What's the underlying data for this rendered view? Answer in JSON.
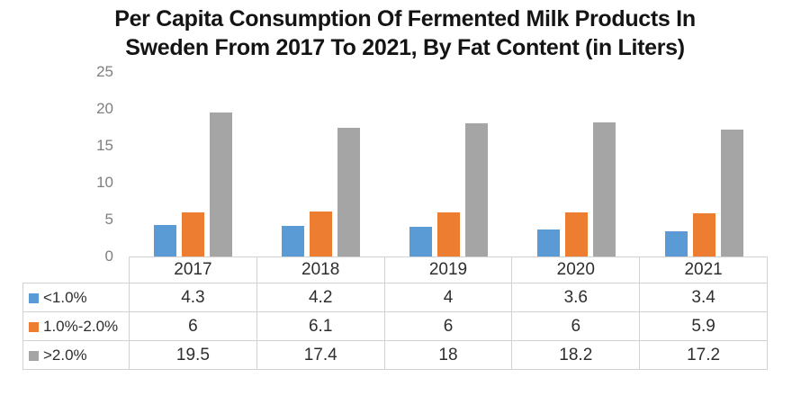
{
  "title": {
    "line1": "Per Capita Consumption Of Fermented Milk Products In",
    "line2": "Sweden From 2017 To 2021, By Fat Content (in Liters)"
  },
  "chart_data": {
    "type": "bar",
    "title": "Per Capita Consumption Of Fermented Milk Products In Sweden From 2017 To 2021, By Fat Content (in Liters)",
    "categories": [
      "2017",
      "2018",
      "2019",
      "2020",
      "2021"
    ],
    "series": [
      {
        "name": "<1.0%",
        "color": "#5B9BD5",
        "values": [
          4.3,
          4.2,
          4,
          3.6,
          3.4
        ]
      },
      {
        "name": "1.0%-2.0%",
        "color": "#ED7D31",
        "values": [
          6,
          6.1,
          6,
          6,
          5.9
        ]
      },
      {
        "name": ">2.0%",
        "color": "#A5A5A5",
        "values": [
          19.5,
          17.4,
          18,
          18.2,
          17.2
        ]
      }
    ],
    "xlabel": "",
    "ylabel": "",
    "ylim": [
      0,
      25
    ],
    "yticks": [
      0,
      5,
      10,
      15,
      20,
      25
    ],
    "grid": false,
    "legend_position": "table-left"
  }
}
